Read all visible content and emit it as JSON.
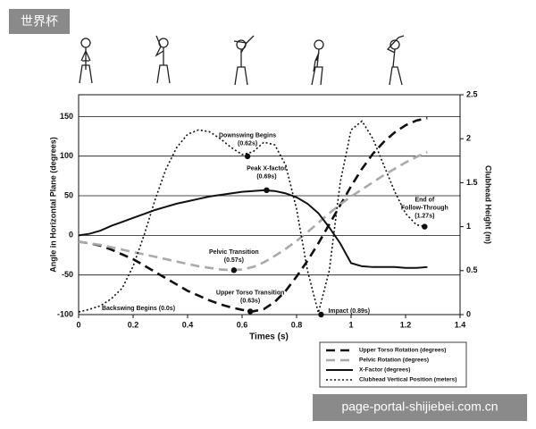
{
  "badge": "世界杯",
  "watermark": "page-portal-shijiebei.com.cn",
  "chart_data": {
    "type": "line",
    "x_label": "Times (s)",
    "y_label": "Angle in Horizontal Plane (degrees)",
    "y2_label": "Clubhead Height (m)",
    "x": [
      0,
      0.04,
      0.08,
      0.12,
      0.16,
      0.2,
      0.24,
      0.28,
      0.32,
      0.36,
      0.4,
      0.44,
      0.48,
      0.52,
      0.56,
      0.6,
      0.64,
      0.68,
      0.72,
      0.76,
      0.8,
      0.84,
      0.88,
      0.92,
      0.96,
      1.0,
      1.04,
      1.08,
      1.12,
      1.16,
      1.2,
      1.24,
      1.28
    ],
    "xlim": [
      0,
      1.4
    ],
    "xticks": [
      0,
      0.2,
      0.4,
      0.6,
      0.8,
      1,
      1.2,
      1.4
    ],
    "ylim": [
      -100,
      177.5
    ],
    "yticks": [
      -100,
      -50,
      0,
      50,
      100,
      150
    ],
    "y2lim": [
      0,
      2.5
    ],
    "y2ticks": [
      0,
      0.5,
      1,
      1.5,
      2,
      2.5
    ],
    "grid": true,
    "series": [
      {
        "name": "Upper Torso Rotation (degrees)",
        "color": "#111111",
        "dash": "dashed",
        "values": [
          -8,
          -10,
          -13,
          -18,
          -24,
          -30,
          -38,
          -46,
          -54,
          -62,
          -70,
          -76,
          -82,
          -87,
          -91,
          -94,
          -96,
          -93,
          -84,
          -70,
          -52,
          -32,
          -10,
          14,
          38,
          62,
          84,
          103,
          118,
          130,
          139,
          145,
          148
        ]
      },
      {
        "name": "Pelvic Rotation (degrees)",
        "color": "#aaaaaa",
        "dash": "dashed",
        "values": [
          -8,
          -10,
          -12,
          -15,
          -18,
          -21,
          -24,
          -27,
          -30,
          -33,
          -36,
          -39,
          -41,
          -43,
          -44,
          -43,
          -40,
          -34,
          -26,
          -17,
          -7,
          4,
          16,
          28,
          39,
          49,
          58,
          67,
          76,
          84,
          92,
          99,
          105
        ]
      },
      {
        "name": "X-Factor (degrees)",
        "color": "#111111",
        "dash": "solid",
        "values": [
          0,
          2,
          6,
          12,
          17,
          22,
          27,
          32,
          36,
          40,
          43,
          46,
          49,
          51,
          53,
          55,
          56,
          57,
          56,
          53,
          48,
          40,
          28,
          10,
          -10,
          -35,
          -39,
          -40,
          -40,
          -40,
          -41,
          -41,
          -40
        ]
      },
      {
        "name": "Clubhead Vertical Position (meters)",
        "color": "#111111",
        "dash": "dotted",
        "axis": "y2",
        "values": [
          0.03,
          0.06,
          0.1,
          0.18,
          0.3,
          0.55,
          0.9,
          1.3,
          1.65,
          1.9,
          2.05,
          2.1,
          2.08,
          2.0,
          1.9,
          1.82,
          1.85,
          1.96,
          1.93,
          1.7,
          1.2,
          0.5,
          0.02,
          0.5,
          1.5,
          2.1,
          2.2,
          2.0,
          1.7,
          1.4,
          1.15,
          1.02,
          1.0
        ]
      }
    ],
    "annotations": [
      {
        "lines": [
          "Downswing Begins",
          "(0.62s)"
        ],
        "x": 0.62,
        "y": 1.8,
        "axis": "y2"
      },
      {
        "lines": [
          "Peak X-factor",
          "(0.69s)"
        ],
        "x": 0.69,
        "y": 57
      },
      {
        "lines": [
          "Pelvic Transition",
          "(0.57s)"
        ],
        "x": 0.57,
        "y": -44
      },
      {
        "lines": [
          "Upper Torso Transition",
          "(0.63s)"
        ],
        "x": 0.63,
        "y": -96
      },
      {
        "lines": [
          "Backswing Begins (0.0s)"
        ]
      },
      {
        "lines": [
          "Impact (0.89s)"
        ],
        "x": 0.89,
        "y": 0,
        "axis": "y2"
      },
      {
        "lines": [
          "End of",
          "Follow-Through",
          "(1.27s)"
        ],
        "x": 1.27,
        "y": 1.0,
        "axis": "y2"
      }
    ]
  }
}
